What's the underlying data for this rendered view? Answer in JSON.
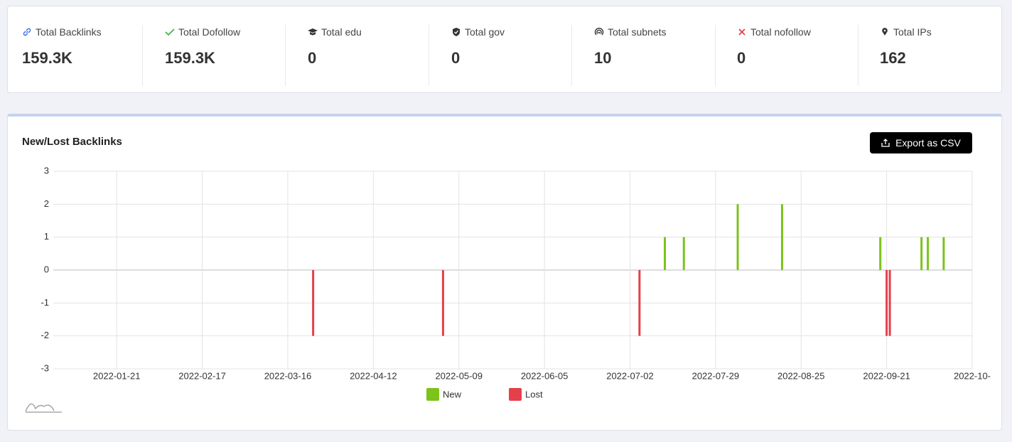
{
  "stats": [
    {
      "label": "Total Backlinks",
      "value": "159.3K"
    },
    {
      "label": "Total Dofollow",
      "value": "159.3K"
    },
    {
      "label": "Total edu",
      "value": 0
    },
    {
      "label": "Total gov",
      "value": 0
    },
    {
      "label": "Total subnets",
      "value": 10
    },
    {
      "label": "Total nofollow",
      "value": 0
    },
    {
      "label": "Total IPs",
      "value": 162
    }
  ],
  "chart_data": {
    "type": "bar",
    "title": "New/Lost Backlinks",
    "export_button": "Export as CSV",
    "series": [
      {
        "name": "New",
        "color": "#7cc31a",
        "x": [
          "2022-07-13",
          "2022-07-19",
          "2022-08-05",
          "2022-08-19",
          "2022-09-19",
          "2022-10-02",
          "2022-10-04",
          "2022-10-09"
        ],
        "values": [
          1,
          1,
          2,
          2,
          1,
          1,
          1,
          1
        ]
      },
      {
        "name": "Lost",
        "color": "#e5404a",
        "x": [
          "2022-03-24",
          "2022-05-04",
          "2022-07-05",
          "2022-09-21",
          "2022-09-22"
        ],
        "values": [
          -2,
          -2,
          -2,
          -2,
          -2
        ]
      }
    ],
    "xlim": [
      "2022-01-01",
      "2022-10-18"
    ],
    "xticks": [
      "2022-01-21",
      "2022-02-17",
      "2022-03-16",
      "2022-04-12",
      "2022-05-09",
      "2022-06-05",
      "2022-07-02",
      "2022-07-29",
      "2022-08-25",
      "2022-09-21",
      {
        "value": "2022-10-18",
        "label": "2022-10-"
      }
    ],
    "ylim": [
      -3,
      3
    ],
    "yticks": [
      -3,
      -2,
      -1,
      0,
      1,
      2,
      3
    ],
    "grid": true
  }
}
